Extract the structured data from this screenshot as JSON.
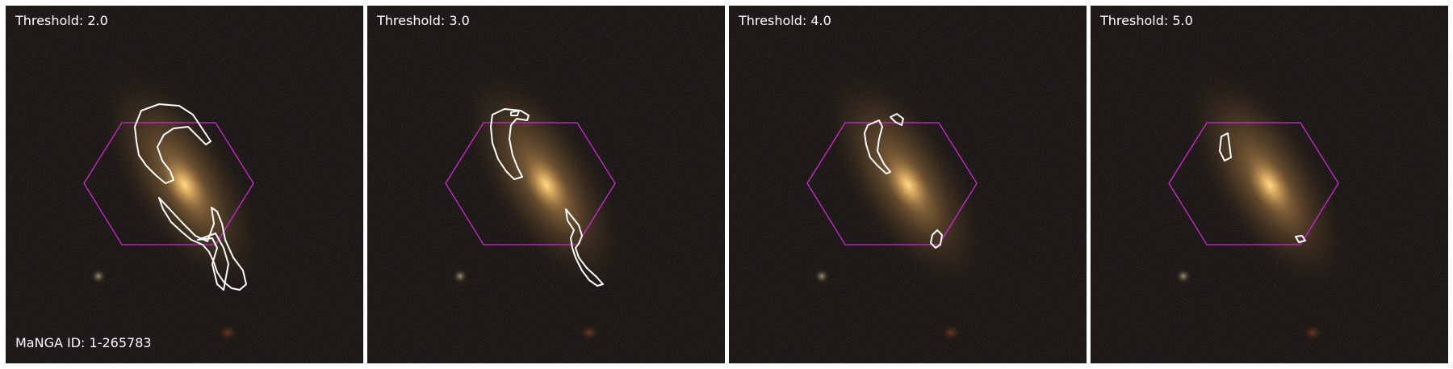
{
  "panels": [
    {
      "threshold_label": "Threshold: 2.0"
    },
    {
      "threshold_label": "Threshold: 3.0"
    },
    {
      "threshold_label": "Threshold: 4.0"
    },
    {
      "threshold_label": "Threshold: 5.0"
    }
  ],
  "galaxy_id_label": "MaNGA ID: 1-265783",
  "colors": {
    "background": "#050403",
    "galaxy_core": "#f2c878",
    "galaxy_halo": "#6b4f2b",
    "hexagon": "#d424d8",
    "contour": "#ffffff",
    "separator": "#ffffff"
  }
}
